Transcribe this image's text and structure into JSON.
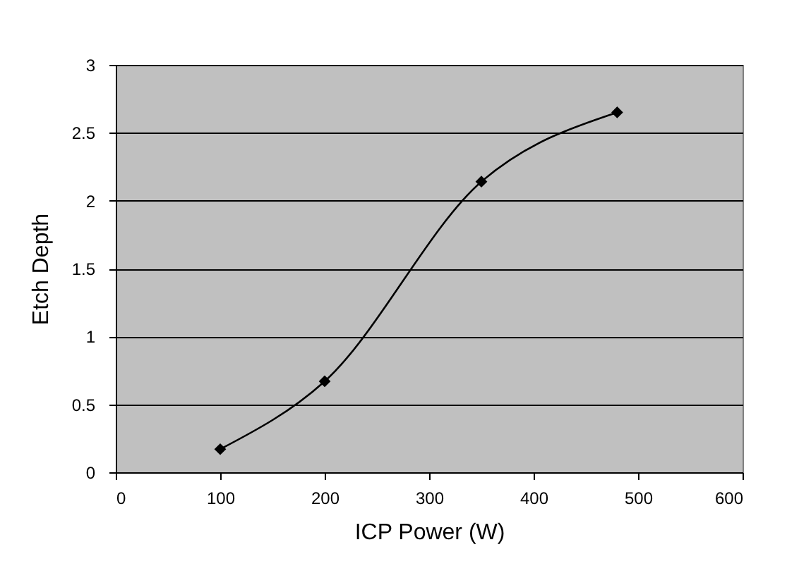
{
  "chart_data": {
    "type": "line",
    "xlabel": "ICP Power (W)",
    "ylabel": "Etch Depth",
    "x": [
      100,
      200,
      350,
      480
    ],
    "series": [
      {
        "color": "#000000",
        "values": [
          0.17,
          0.67,
          2.14,
          2.65
        ]
      }
    ],
    "xlim": [
      0,
      600
    ],
    "xticks": [
      0,
      100,
      200,
      300,
      400,
      500,
      600
    ],
    "ylim": [
      0,
      3
    ],
    "yticks": [
      0,
      0.5,
      1,
      1.5,
      2,
      2.5,
      3
    ],
    "grid": "y",
    "legend": false,
    "marker": "diamond",
    "line_style": "solid"
  }
}
